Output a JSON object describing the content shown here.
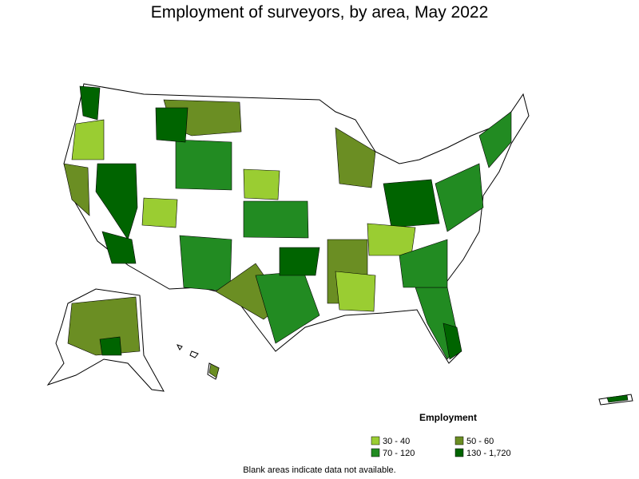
{
  "title": "Employment of surveyors, by area, May 2022",
  "legend": {
    "title": "Employment",
    "items": [
      {
        "label": "30 - 40",
        "color": "#9acd32"
      },
      {
        "label": "50 - 60",
        "color": "#6b8e23"
      },
      {
        "label": "70 - 120",
        "color": "#228b22"
      },
      {
        "label": "130 - 1,720",
        "color": "#006400"
      }
    ]
  },
  "footnote": "Blank areas indicate data not available."
}
